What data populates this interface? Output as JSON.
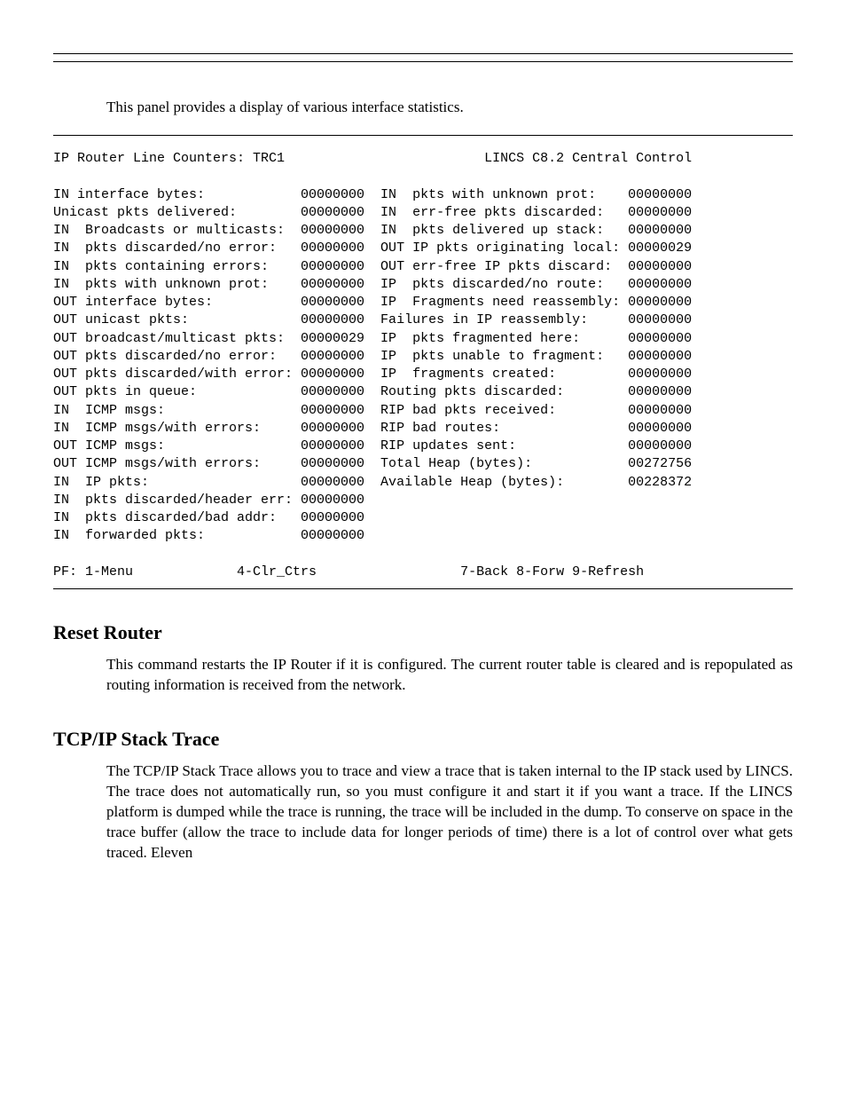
{
  "page": {
    "intro": "This panel provides a display of various interface statistics.",
    "terminal": {
      "title_left": "IP Router Line Counters: TRC1",
      "title_right": "LINCS C8.2 Central Control",
      "left_rows": [
        {
          "label": "IN interface bytes:",
          "value": "00000000"
        },
        {
          "label": "Unicast pkts delivered:",
          "value": "00000000"
        },
        {
          "label": "IN  Broadcasts or multicasts:",
          "value": "00000000"
        },
        {
          "label": "IN  pkts discarded/no error:",
          "value": "00000000"
        },
        {
          "label": "IN  pkts containing errors:",
          "value": "00000000"
        },
        {
          "label": "IN  pkts with unknown prot:",
          "value": "00000000"
        },
        {
          "label": "OUT interface bytes:",
          "value": "00000000"
        },
        {
          "label": "OUT unicast pkts:",
          "value": "00000000"
        },
        {
          "label": "OUT broadcast/multicast pkts:",
          "value": "00000029"
        },
        {
          "label": "OUT pkts discarded/no error:",
          "value": "00000000"
        },
        {
          "label": "OUT pkts discarded/with error:",
          "value": "00000000"
        },
        {
          "label": "OUT pkts in queue:",
          "value": "00000000"
        },
        {
          "label": "IN  ICMP msgs:",
          "value": "00000000"
        },
        {
          "label": "IN  ICMP msgs/with errors:",
          "value": "00000000"
        },
        {
          "label": "OUT ICMP msgs:",
          "value": "00000000"
        },
        {
          "label": "OUT ICMP msgs/with errors:",
          "value": "00000000"
        },
        {
          "label": "IN  IP pkts:",
          "value": "00000000"
        },
        {
          "label": "IN  pkts discarded/header err:",
          "value": "00000000"
        },
        {
          "label": "IN  pkts discarded/bad addr:",
          "value": "00000000"
        },
        {
          "label": "IN  forwarded pkts:",
          "value": "00000000"
        }
      ],
      "right_rows": [
        {
          "label": "IN  pkts with unknown prot:",
          "value": "00000000"
        },
        {
          "label": "IN  err-free pkts discarded:",
          "value": "00000000"
        },
        {
          "label": "IN  pkts delivered up stack:",
          "value": "00000000"
        },
        {
          "label": "OUT IP pkts originating local:",
          "value": "00000029"
        },
        {
          "label": "OUT err-free IP pkts discard:",
          "value": "00000000"
        },
        {
          "label": "IP  pkts discarded/no route:",
          "value": "00000000"
        },
        {
          "label": "IP  Fragments need reassembly:",
          "value": "00000000"
        },
        {
          "label": "Failures in IP reassembly:",
          "value": "00000000"
        },
        {
          "label": "IP  pkts fragmented here:",
          "value": "00000000"
        },
        {
          "label": "IP  pkts unable to fragment:",
          "value": "00000000"
        },
        {
          "label": "IP  fragments created:",
          "value": "00000000"
        },
        {
          "label": "Routing pkts discarded:",
          "value": "00000000"
        },
        {
          "label": "RIP bad pkts received:",
          "value": "00000000"
        },
        {
          "label": "RIP bad routes:",
          "value": "00000000"
        },
        {
          "label": "RIP updates sent:",
          "value": "00000000"
        },
        {
          "label": "Total Heap (bytes):",
          "value": "00272756"
        },
        {
          "label": "Available Heap (bytes):",
          "value": "00228372"
        }
      ],
      "pf_line": "PF: 1-Menu             4-Clr_Ctrs                  7-Back 8-Forw 9-Refresh"
    },
    "section1": {
      "heading": "Reset Router",
      "body": "This command restarts the IP Router if it is configured. The current router table is cleared and is repopulated as routing information is received from the network."
    },
    "section2": {
      "heading": "TCP/IP Stack Trace",
      "body": "The TCP/IP Stack Trace allows you to trace and view a trace that is taken internal to the IP stack used by LINCS. The trace does not automatically run, so you must configure it and start it if you want a trace. If the LINCS platform is dumped while the trace is running, the trace will be included in the dump. To conserve on space in the trace buffer (allow the trace to include data for longer periods of time) there is a lot of control over what gets traced. Eleven"
    }
  },
  "layout": {
    "font_family_body": "Times New Roman",
    "font_family_terminal": "Courier New",
    "font_size_body": 17,
    "font_size_terminal": 15,
    "font_size_heading": 22,
    "left_label_width": 31,
    "value_width": 8,
    "right_label_width": 31,
    "column_gap": 2,
    "text_color": "#000000",
    "background_color": "#ffffff"
  }
}
